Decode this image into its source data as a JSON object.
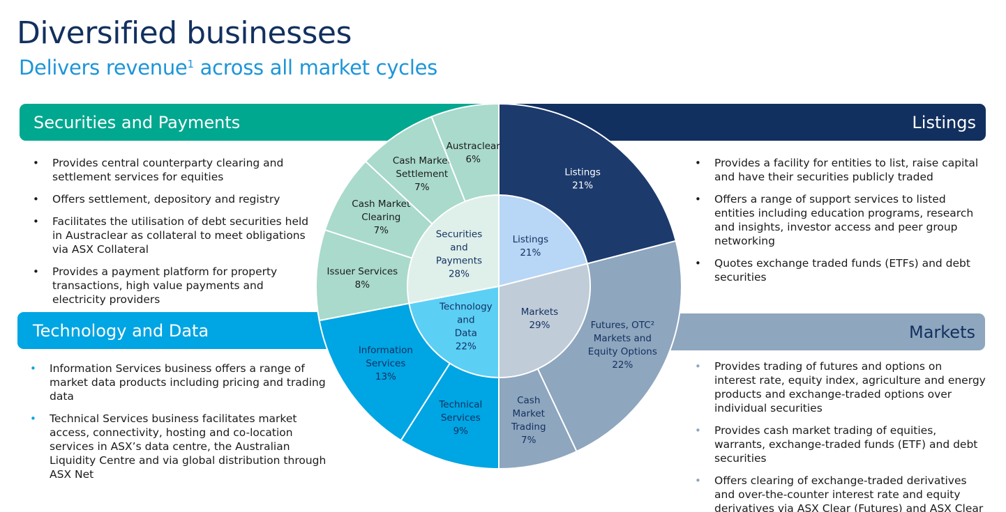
{
  "title": "Diversified businesses",
  "subtitle": "Delivers revenue",
  "subtitle_sup": "1",
  "sections": {
    "securities": {
      "band": "Securities and Payments",
      "bullets": [
        "Provides central counterparty clearing and settlement services for equities",
        "Offers settlement, depository and registry",
        "Facilitates the utilisation of debt securities held in Austraclear as collateral to meet obligations via ASX Collateral",
        "Provides a payment platform for property transactions, high value payments and electricity providers"
      ]
    },
    "technology": {
      "band": "Technology and Data",
      "bullets": [
        "Information Services business offers a range of market data products including pricing and trading data",
        "Technical Services business facilitates market access, connectivity, hosting and co-location services in ASX’s data centre, the Australian Liquidity Centre and via global distribution through ASX Net"
      ]
    },
    "listings": {
      "band": "Listings",
      "bullets": [
        "Provides a facility for entities to list, raise capital and have their securities publicly traded",
        "Offers a range of support services to listed entities including education programs, research and insights, investor access and peer group networking",
        "Quotes exchange traded funds (ETFs) and debt securities"
      ]
    },
    "markets": {
      "band": "Markets",
      "bullets": [
        "Provides trading of futures and options on interest rate, equity index, agriculture and energy products and exchange-traded options over individual securities",
        "Provides cash market trading of equities, warrants, exchange-traded funds (ETF) and debt securities",
        "Offers clearing of exchange-traded derivatives and over-the-counter interest rate and equity derivatives via ASX Clear (Futures) and ASX Clear"
      ]
    }
  },
  "chart_data": {
    "type": "pie",
    "inner": [
      {
        "name": "Listings",
        "label_lines": [
          "Listings"
        ],
        "value": 21,
        "value_label": "21%",
        "color": "#b8d6f5",
        "text_color": "#12305f"
      },
      {
        "name": "Markets",
        "label_lines": [
          "Markets"
        ],
        "value": 29,
        "value_label": "29%",
        "color": "#c0ccd8",
        "text_color": "#12305f"
      },
      {
        "name": "Technology and Data",
        "label_lines": [
          "Technology",
          "and",
          "Data"
        ],
        "value": 22,
        "value_label": "22%",
        "color": "#5ccff5",
        "text_color": "#12305f"
      },
      {
        "name": "Securities and Payments",
        "label_lines": [
          "Securities",
          "and",
          "Payments"
        ],
        "value": 28,
        "value_label": "28%",
        "color": "#dff0ea",
        "text_color": "#12305f"
      }
    ],
    "outer": [
      {
        "name": "Listings",
        "label_lines": [
          "Listings"
        ],
        "value": 21,
        "value_label": "21%",
        "color": "#1c3a6c",
        "text_color": "#ffffff"
      },
      {
        "name": "Futures, OTC Markets and Equity Options",
        "label_lines": [
          "Futures, OTC²",
          "Markets and",
          "Equity Options"
        ],
        "value": 22,
        "value_label": "22%",
        "color": "#8ea6be",
        "text_color": "#12305f"
      },
      {
        "name": "Cash Market Trading",
        "label_lines": [
          "Cash",
          "Market",
          "Trading"
        ],
        "value": 7,
        "value_label": "7%",
        "color": "#8ea6be",
        "text_color": "#12305f"
      },
      {
        "name": "Technical Services",
        "label_lines": [
          "Technical",
          "Services"
        ],
        "value": 9,
        "value_label": "9%",
        "color": "#00a5e3",
        "text_color": "#12305f"
      },
      {
        "name": "Information Services",
        "label_lines": [
          "Information",
          "Services"
        ],
        "value": 13,
        "value_label": "13%",
        "color": "#00a5e3",
        "text_color": "#12305f"
      },
      {
        "name": "Issuer Services",
        "label_lines": [
          "Issuer Services"
        ],
        "value": 8,
        "value_label": "8%",
        "color": "#a9dacb",
        "text_color": "#1a1a1a"
      },
      {
        "name": "Cash Market Clearing",
        "label_lines": [
          "Cash Market",
          "Clearing"
        ],
        "value": 7,
        "value_label": "7%",
        "color": "#a9dacb",
        "text_color": "#1a1a1a"
      },
      {
        "name": "Cash Market Settlement",
        "label_lines": [
          "Cash Market",
          "Settlement"
        ],
        "value": 7,
        "value_label": "7%",
        "color": "#a9dacb",
        "text_color": "#1a1a1a"
      },
      {
        "name": "Austraclear",
        "label_lines": [
          "Austraclear"
        ],
        "value": 6,
        "value_label": "6%",
        "color": "#a9dacb",
        "text_color": "#1a1a1a"
      }
    ]
  }
}
